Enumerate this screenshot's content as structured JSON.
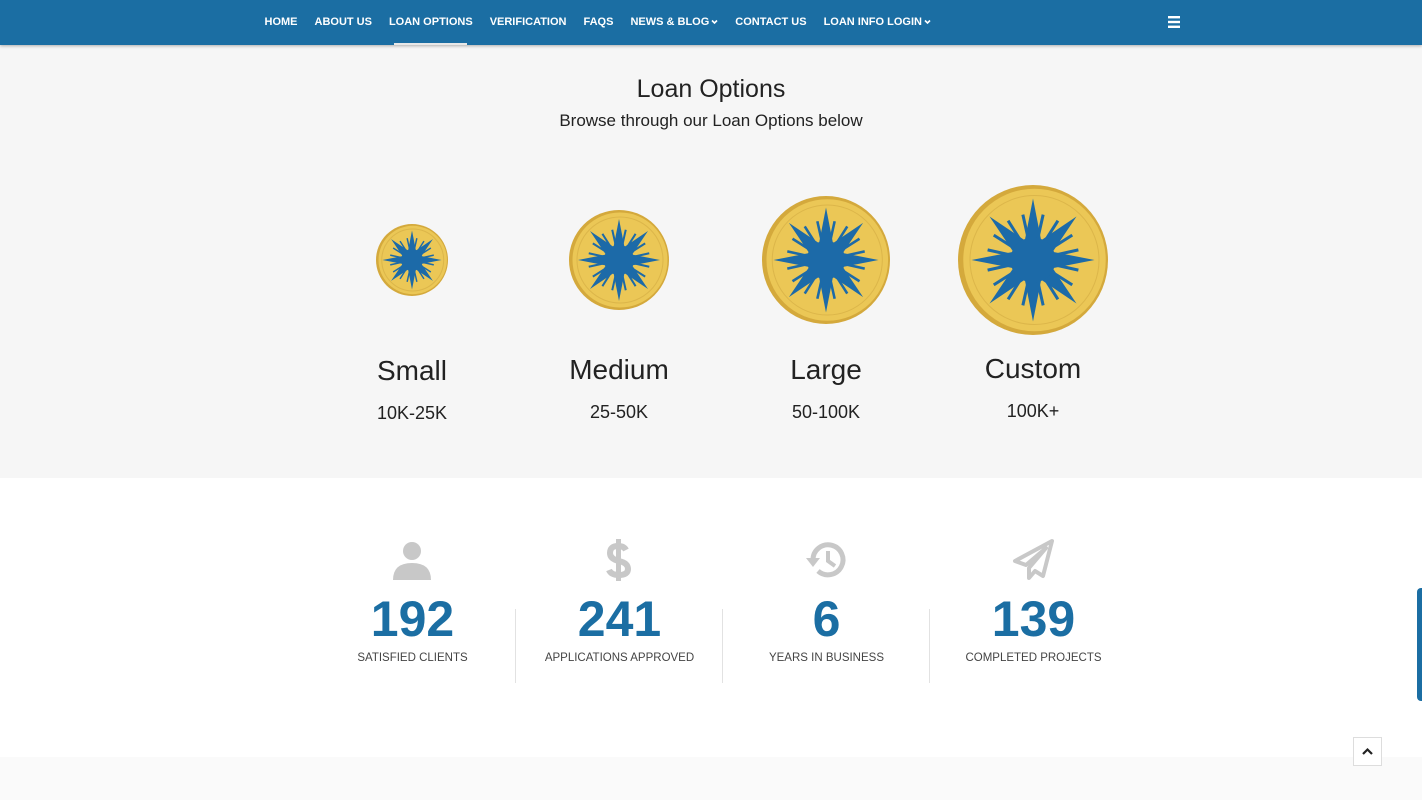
{
  "nav": {
    "items": [
      {
        "label": "HOME"
      },
      {
        "label": "ABOUT US"
      },
      {
        "label": "LOAN OPTIONS",
        "active": true
      },
      {
        "label": "VERIFICATION"
      },
      {
        "label": "FAQS"
      },
      {
        "label": "NEWS & BLOG",
        "dropdown": true
      },
      {
        "label": "CONTACT US"
      },
      {
        "label": "LOAN INFO LOGIN",
        "dropdown": true
      }
    ]
  },
  "loans": {
    "title": "Loan Options",
    "subtitle": "Browse through our Loan Options below",
    "options": [
      {
        "name": "Small",
        "range": "10K-25K"
      },
      {
        "name": "Medium",
        "range": "25-50K"
      },
      {
        "name": "Large",
        "range": "50-100K"
      },
      {
        "name": "Custom",
        "range": "100K+"
      }
    ]
  },
  "stats": [
    {
      "value": "192",
      "label": "SATISFIED CLIENTS",
      "icon": "user"
    },
    {
      "value": "241",
      "label": "APPLICATIONS APPROVED",
      "icon": "dollar"
    },
    {
      "value": "6",
      "label": "YEARS IN BUSINESS",
      "icon": "history"
    },
    {
      "value": "139",
      "label": "COMPLETED PROJECTS",
      "icon": "plane"
    }
  ]
}
